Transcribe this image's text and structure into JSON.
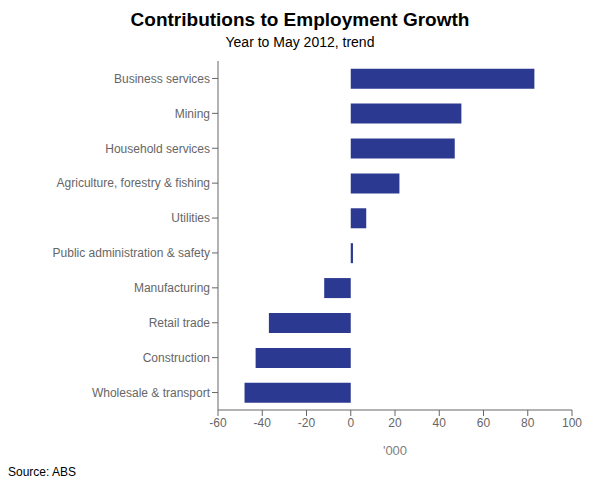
{
  "chart_data": {
    "type": "bar",
    "orientation": "horizontal",
    "title": "Contributions to Employment Growth",
    "subtitle": "Year to May 2012, trend",
    "xlabel": "'000",
    "annotations": [
      "Source: ABS"
    ],
    "categories": [
      "Business services",
      "Mining",
      "Household services",
      "Agriculture, forestry & fishing",
      "Utilities",
      "Public administration & safety",
      "Manufacturing",
      "Retail trade",
      "Construction",
      "Wholesale & transport"
    ],
    "values": [
      83,
      50,
      47,
      22,
      7,
      1,
      -12,
      -37,
      -43,
      -48
    ],
    "color": "#2b3990",
    "xlim": [
      -60,
      100
    ],
    "xticks": [
      -60,
      -40,
      -20,
      0,
      20,
      40,
      60,
      80,
      100
    ],
    "grid": false
  }
}
